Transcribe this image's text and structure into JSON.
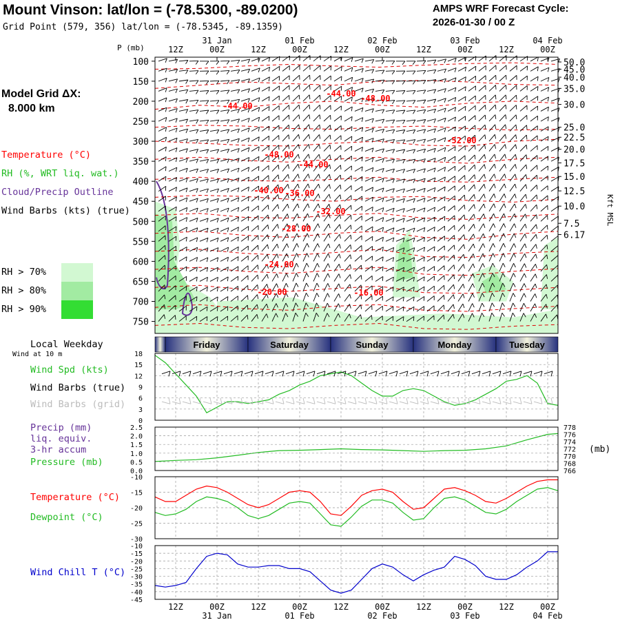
{
  "header": {
    "title": "Mount Vinson:  lat/lon = (-78.5300, -89.0200)",
    "gridpoint": "Grid Point (579, 356) lat/lon = (-78.5345, -89.1359)",
    "cycle_line1": "AMPS WRF Forecast Cycle:",
    "cycle_line2": "2026-01-30 / 00  Z"
  },
  "left_panel": {
    "model_grid_label": "Model Grid ΔX:",
    "model_grid_value": "8.000 km",
    "legend_temperature": "Temperature (°C)",
    "legend_rh": "RH (%, WRT liq. wat.)",
    "legend_cloud": "Cloud/Precip Outline",
    "legend_wind": "Wind Barbs (kts) (true)",
    "rh70": "RH > 70%",
    "rh80": "RH > 80%",
    "rh90": "RH > 90%",
    "local_weekday": "Local Weekday",
    "wind_at_10m": "Wind at 10 m",
    "wind_spd": "Wind Spd (kts)",
    "wind_barbs_true": "Wind Barbs (true)",
    "wind_barbs_grid": "Wind Barbs (grid)",
    "precip1": "Precip (mm)",
    "precip2": "liq. equiv.",
    "precip3": "3-hr accum",
    "pressure": "Pressure (mb)",
    "temperature": "Temperature (°C)",
    "dewpoint": "Dewpoint (°C)",
    "windchill": "Wind Chill T (°C)"
  },
  "colors": {
    "temperature": "#ff0000",
    "contour": "#dd0000",
    "green": "#22bb22",
    "rh70": "#d2f8d2",
    "rh80": "#a2eba2",
    "rh90": "#33dd33",
    "cloud": "#663399",
    "windchill": "#0000cc",
    "grid_barbs": "#bbbbbb"
  },
  "time_axis": {
    "hour_labels": [
      "12Z",
      "00Z",
      "12Z",
      "00Z",
      "12Z",
      "00Z",
      "12Z",
      "00Z",
      "12Z",
      "00Z"
    ],
    "hour_values": [
      6,
      18,
      30,
      42,
      54,
      66,
      78,
      90,
      102,
      114
    ],
    "date_labels": [
      {
        "text": "31 Jan",
        "hour": 18
      },
      {
        "text": "01 Feb",
        "hour": 42
      },
      {
        "text": "02 Feb",
        "hour": 66
      },
      {
        "text": "03 Feb",
        "hour": 90
      },
      {
        "text": "04 Feb",
        "hour": 114
      }
    ],
    "weekdays": [
      {
        "name": "Friday",
        "start": 3,
        "end": 27
      },
      {
        "name": "Saturday",
        "start": 27,
        "end": 51
      },
      {
        "name": "Sunday",
        "start": 51,
        "end": 75
      },
      {
        "name": "Monday",
        "start": 75,
        "end": 99
      },
      {
        "name": "Tuesday",
        "start": 99,
        "end": 117
      }
    ]
  },
  "chart_data": [
    {
      "type": "heatmap",
      "name": "cross-section",
      "x_range_hours": [
        0,
        117
      ],
      "pressure_ticks": [
        "100",
        "150",
        "200",
        "250",
        "300",
        "350",
        "400",
        "450",
        "500",
        "550",
        "600",
        "650",
        "700",
        "750"
      ],
      "pressure_values": [
        100,
        150,
        200,
        250,
        300,
        350,
        400,
        450,
        500,
        550,
        600,
        650,
        700,
        750
      ],
      "height_ticks_label": "Kft MSL",
      "height_ticks": [
        "50.0",
        "45.0",
        "40.0",
        "35.0",
        "30.0",
        "25.0",
        "22.5",
        "20.0",
        "17.5",
        "15.0",
        "12.5",
        "10.0",
        "7.5",
        "6.17"
      ],
      "height_ticks_p": [
        102,
        120,
        140,
        168,
        208,
        265,
        290,
        320,
        354,
        388,
        424,
        462,
        505,
        533
      ],
      "isotherm_labels": [
        {
          "text": "-44.00",
          "hour": 24,
          "p": 219
        },
        {
          "text": "-44.00",
          "hour": 54,
          "p": 188
        },
        {
          "text": "-48.00",
          "hour": 64,
          "p": 200
        },
        {
          "text": "-52.00",
          "hour": 89,
          "p": 305
        },
        {
          "text": "-48.00",
          "hour": 36,
          "p": 340
        },
        {
          "text": "-44.00",
          "hour": 46,
          "p": 365
        },
        {
          "text": "-40.00",
          "hour": 33,
          "p": 430
        },
        {
          "text": "-36.00",
          "hour": 42,
          "p": 437
        },
        {
          "text": "-32.00",
          "hour": 51,
          "p": 482
        },
        {
          "text": "-28.00",
          "hour": 41,
          "p": 525
        },
        {
          "text": "-24.00",
          "hour": 36,
          "p": 615
        },
        {
          "text": "-20.00",
          "hour": 34,
          "p": 684
        },
        {
          "text": "-16.00",
          "hour": 62,
          "p": 685
        }
      ]
    },
    {
      "type": "line",
      "name": "wind-speed",
      "ylabel": "",
      "ylim": [
        0,
        18
      ],
      "yticks": [
        0,
        3,
        6,
        9,
        12,
        15,
        18
      ],
      "series": [
        {
          "name": "Wind Spd (kts)",
          "x": [
            0,
            3,
            6,
            9,
            12,
            15,
            18,
            21,
            24,
            27,
            30,
            33,
            36,
            39,
            42,
            45,
            48,
            51,
            54,
            57,
            60,
            63,
            66,
            69,
            72,
            75,
            78,
            81,
            84,
            87,
            90,
            93,
            96,
            99,
            102,
            105,
            108,
            111,
            114,
            117
          ],
          "y": [
            17.5,
            15.5,
            12.5,
            9.5,
            6.5,
            2,
            3.5,
            5,
            5,
            4.5,
            5,
            5.5,
            7,
            8,
            9.5,
            10.5,
            12,
            12.5,
            13,
            12,
            10,
            8,
            6.5,
            6.5,
            8,
            8.5,
            8,
            6.5,
            5,
            4,
            4.5,
            5.5,
            7,
            8.5,
            10.5,
            11,
            12,
            10,
            4.5,
            4
          ]
        }
      ]
    },
    {
      "type": "line",
      "name": "pressure",
      "ylim": [
        766,
        778
      ],
      "yticks_right": [
        766,
        768,
        770,
        772,
        774,
        776,
        778
      ],
      "yticks_left": [
        "0.0",
        "0.5",
        "1.0",
        "1.5",
        "2.0",
        "2.5"
      ],
      "ylabel_right": "(mb)",
      "series": [
        {
          "name": "Pressure (mb)",
          "x": [
            0,
            6,
            12,
            18,
            24,
            30,
            36,
            42,
            48,
            54,
            60,
            66,
            72,
            78,
            84,
            90,
            96,
            102,
            108,
            114,
            117
          ],
          "y": [
            768.5,
            768.8,
            769,
            769.5,
            770.2,
            771,
            771.5,
            771.6,
            771.8,
            772,
            771.8,
            771.7,
            771.5,
            771.3,
            771.5,
            771.6,
            772,
            772.8,
            774.5,
            776,
            776.2
          ]
        }
      ]
    },
    {
      "type": "line",
      "name": "temperature-dewpoint",
      "ylim": [
        -30,
        -10
      ],
      "yticks": [
        -10,
        -15,
        -20,
        -25,
        -30
      ],
      "series": [
        {
          "name": "Temperature (°C)",
          "x": [
            0,
            3,
            6,
            9,
            12,
            15,
            18,
            21,
            24,
            27,
            30,
            33,
            36,
            39,
            42,
            45,
            48,
            51,
            54,
            57,
            60,
            63,
            66,
            69,
            72,
            75,
            78,
            81,
            84,
            87,
            90,
            93,
            96,
            99,
            102,
            105,
            108,
            111,
            114,
            117
          ],
          "y": [
            -16.5,
            -18,
            -18,
            -16,
            -14,
            -13,
            -13.5,
            -15,
            -17,
            -19,
            -20,
            -19,
            -17,
            -15,
            -14.5,
            -15,
            -18,
            -22,
            -22.5,
            -19.5,
            -16,
            -14.5,
            -14,
            -15,
            -18,
            -20.5,
            -20,
            -17,
            -14,
            -13.5,
            -14.5,
            -16,
            -18,
            -18.5,
            -17,
            -15,
            -13,
            -11.5,
            -11,
            -11
          ]
        },
        {
          "name": "Dewpoint (°C)",
          "x": [
            0,
            3,
            6,
            9,
            12,
            15,
            18,
            21,
            24,
            27,
            30,
            33,
            36,
            39,
            42,
            45,
            48,
            51,
            54,
            57,
            60,
            63,
            66,
            69,
            72,
            75,
            78,
            81,
            84,
            87,
            90,
            93,
            96,
            99,
            102,
            105,
            108,
            111,
            114,
            117
          ],
          "y": [
            -21.5,
            -22.5,
            -22,
            -20.5,
            -18,
            -16.5,
            -17,
            -18,
            -20,
            -22.5,
            -23.5,
            -22.5,
            -20.5,
            -18.5,
            -18,
            -18.5,
            -22,
            -25.5,
            -26,
            -23,
            -19.5,
            -17.5,
            -17.5,
            -18.5,
            -21.5,
            -24,
            -23.5,
            -20,
            -17,
            -16.5,
            -17.5,
            -19.5,
            -21.5,
            -22,
            -20.5,
            -18,
            -16,
            -14,
            -13.5,
            -14.5
          ]
        }
      ]
    },
    {
      "type": "line",
      "name": "wind-chill",
      "ylim": [
        -45,
        -10
      ],
      "yticks": [
        -10,
        -15,
        -20,
        -25,
        -30,
        -35,
        -40,
        -45
      ],
      "series": [
        {
          "name": "Wind Chill T (°C)",
          "x": [
            0,
            3,
            6,
            9,
            12,
            15,
            18,
            21,
            24,
            27,
            30,
            33,
            36,
            39,
            42,
            45,
            48,
            51,
            54,
            57,
            60,
            63,
            66,
            69,
            72,
            75,
            78,
            81,
            84,
            87,
            90,
            93,
            96,
            99,
            102,
            105,
            108,
            111,
            114,
            117
          ],
          "y": [
            -36,
            -37,
            -36,
            -34,
            -25,
            -17,
            -15,
            -16,
            -22,
            -24,
            -24,
            -23,
            -23,
            -25,
            -25,
            -27,
            -33,
            -39,
            -41,
            -39,
            -32,
            -25,
            -22,
            -24,
            -29,
            -33,
            -29,
            -26,
            -24,
            -17,
            -19,
            -23,
            -30,
            -32,
            -32,
            -29,
            -24,
            -20,
            -14,
            -14
          ]
        }
      ]
    }
  ]
}
